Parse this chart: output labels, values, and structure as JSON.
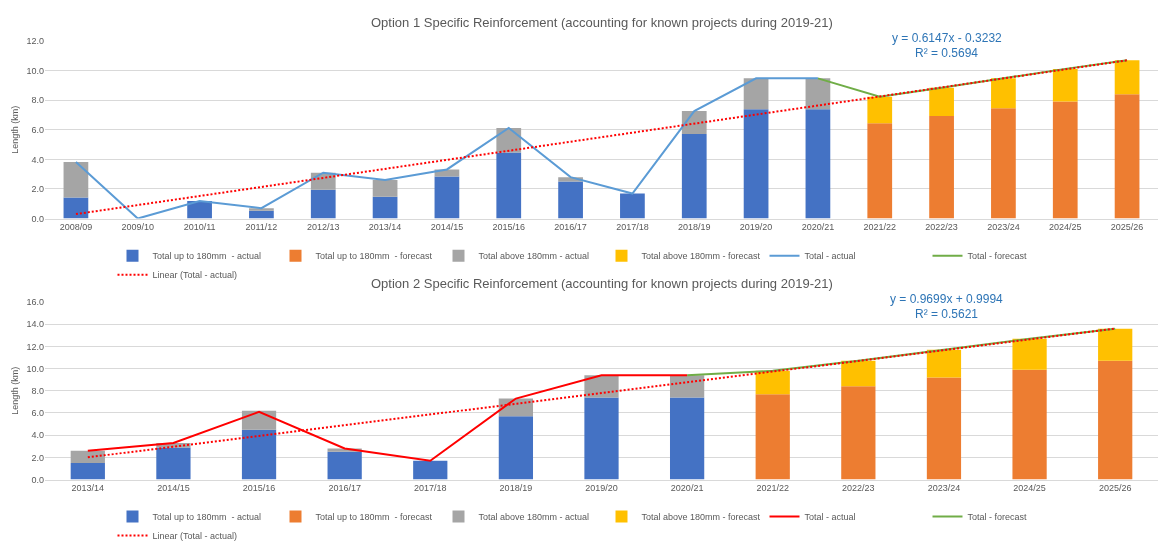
{
  "chart_data": [
    {
      "type": "bar",
      "title": "Option 1 Specific Reinforcement (accounting for known projects during 2019-21)",
      "ylabel": "Length (km)",
      "stacked": true,
      "grid": "y",
      "legend": "bottom",
      "marker": "none",
      "categories": [
        "2008/09",
        "2009/10",
        "2010/11",
        "2011/12",
        "2012/13",
        "2013/14",
        "2014/15",
        "2015/16",
        "2016/17",
        "2017/18",
        "2018/19",
        "2019/20",
        "2020/21",
        "2021/22",
        "2022/23",
        "2023/24",
        "2024/25",
        "2025/26"
      ],
      "ylim": [
        0,
        12
      ],
      "yticks": [
        {
          "value": 0,
          "label": "0.0"
        },
        {
          "value": 2,
          "label": "2.0"
        },
        {
          "value": 4,
          "label": "4.0"
        },
        {
          "value": 6,
          "label": "6.0"
        },
        {
          "value": 8,
          "label": "8.0"
        },
        {
          "value": 10,
          "label": "10.0"
        },
        {
          "value": 12,
          "label": "12.0"
        }
      ],
      "annotations": [
        "y = 0.6147x - 0.3232",
        "R² = 0.5694"
      ],
      "series": [
        {
          "name": "Total up to 180mm  - actual",
          "color": "#4472c4",
          "values": [
            1.43,
            0,
            1.19,
            0.53,
            1.94,
            1.48,
            2.84,
            4.46,
            2.5,
            1.69,
            5.72,
            7.39,
            7.39,
            null,
            null,
            null,
            null,
            null
          ]
        },
        {
          "name": "Total up to 180mm  - forecast",
          "color": "#ed7d31",
          "values": [
            null,
            null,
            null,
            null,
            null,
            null,
            null,
            null,
            null,
            null,
            null,
            null,
            null,
            6.44,
            6.94,
            7.46,
            7.91,
            8.41
          ]
        },
        {
          "name": "Total above 180mm - actual",
          "color": "#a5a5a5",
          "values": [
            2.4,
            0,
            0,
            0.17,
            1.16,
            1.12,
            0.48,
            1.67,
            0.3,
            0,
            1.55,
            2.09,
            2.09,
            null,
            null,
            null,
            null,
            null
          ]
        },
        {
          "name": "Total above 180mm - forecast",
          "color": "#ffc000",
          "values": [
            null,
            null,
            null,
            null,
            null,
            null,
            null,
            null,
            null,
            null,
            null,
            null,
            null,
            1.8,
            1.9,
            2.02,
            2.21,
            2.3
          ]
        },
        {
          "name": "Total - actual",
          "type": "line",
          "color": "#5b9bd5",
          "line_style": "solid",
          "values": [
            3.83,
            0,
            1.19,
            0.7,
            3.1,
            2.6,
            3.32,
            6.13,
            2.8,
            1.69,
            7.27,
            9.48,
            9.48,
            null,
            null,
            null,
            null,
            null
          ]
        },
        {
          "name": "Total - forecast",
          "type": "line",
          "color": "#70ad47",
          "line_style": "solid",
          "values": [
            null,
            null,
            null,
            null,
            null,
            null,
            null,
            null,
            null,
            null,
            null,
            null,
            9.48,
            8.24,
            8.84,
            9.48,
            10.12,
            10.71
          ]
        },
        {
          "name": "Linear (Total - actual)",
          "type": "line",
          "color": "#ff0000",
          "line_style": "dotted",
          "x": [
            "2008/09",
            "2025/26"
          ],
          "values": [
            0.3,
            10.7
          ]
        }
      ]
    },
    {
      "type": "bar",
      "title": "Option 2 Specific Reinforcement (accounting for known projects during 2019-21)",
      "ylabel": "Length (km)",
      "stacked": true,
      "grid": "y",
      "legend": "bottom",
      "marker": "none",
      "categories": [
        "2013/14",
        "2014/15",
        "2015/16",
        "2016/17",
        "2017/18",
        "2018/19",
        "2019/20",
        "2020/21",
        "2021/22",
        "2022/23",
        "2023/24",
        "2024/25",
        "2025/26"
      ],
      "ylim": [
        0,
        16
      ],
      "yticks": [
        {
          "value": 0,
          "label": "0.0"
        },
        {
          "value": 2,
          "label": "2.0"
        },
        {
          "value": 4,
          "label": "4.0"
        },
        {
          "value": 6,
          "label": "6.0"
        },
        {
          "value": 8,
          "label": "8.0"
        },
        {
          "value": 10,
          "label": "10.0"
        },
        {
          "value": 12,
          "label": "12.0"
        },
        {
          "value": 14,
          "label": "14.0"
        },
        {
          "value": 16,
          "label": "16.0"
        }
      ],
      "annotations": [
        "y = 0.9699x + 0.9994",
        "R² = 0.5621"
      ],
      "series": [
        {
          "name": "Total up to 180mm  - actual",
          "color": "#4472c4",
          "values": [
            1.5,
            2.9,
            4.5,
            2.5,
            1.7,
            5.7,
            7.4,
            7.4,
            null,
            null,
            null,
            null,
            null
          ]
        },
        {
          "name": "Total up to 180mm  - forecast",
          "color": "#ed7d31",
          "values": [
            null,
            null,
            null,
            null,
            null,
            null,
            null,
            null,
            7.7,
            8.4,
            9.2,
            9.9,
            10.7
          ]
        },
        {
          "name": "Total above 180mm - actual",
          "color": "#a5a5a5",
          "values": [
            1.1,
            0.4,
            1.7,
            0.3,
            0,
            1.6,
            2.0,
            2.0,
            null,
            null,
            null,
            null,
            null
          ]
        },
        {
          "name": "Total above 180mm - forecast",
          "color": "#ffc000",
          "values": [
            null,
            null,
            null,
            null,
            null,
            null,
            null,
            null,
            2.1,
            2.3,
            2.5,
            2.8,
            2.9
          ]
        },
        {
          "name": "Total - actual",
          "type": "line",
          "color": "#ff0000",
          "line_style": "solid",
          "values": [
            2.6,
            3.3,
            6.1,
            2.8,
            1.7,
            7.3,
            9.4,
            9.4,
            null,
            null,
            null,
            null,
            null
          ]
        },
        {
          "name": "Total - forecast",
          "type": "line",
          "color": "#70ad47",
          "line_style": "solid",
          "values": [
            null,
            null,
            null,
            null,
            null,
            null,
            null,
            9.4,
            9.8,
            10.7,
            11.7,
            12.7,
            13.6
          ]
        },
        {
          "name": "Linear (Total - actual)",
          "type": "line",
          "color": "#ff0000",
          "line_style": "dotted",
          "x": [
            "2013/14",
            "2025/26"
          ],
          "values": [
            2.0,
            13.6
          ]
        }
      ]
    }
  ]
}
